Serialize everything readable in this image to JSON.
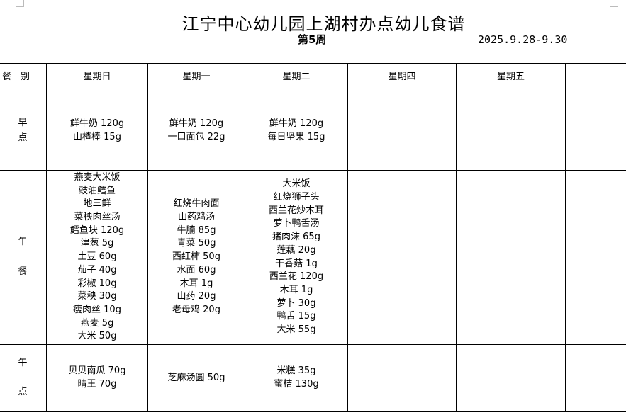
{
  "title": "江宁中心幼儿园上湖村办点幼儿食谱",
  "week": "第5周",
  "date": "2025.9.28-9.30",
  "headers": [
    "餐　别",
    "星期日",
    "星期一",
    "星期二",
    "星期四",
    "星期五",
    ""
  ],
  "meals": {
    "breakfast": {
      "label": "早\n点",
      "days": [
        [
          "鲜牛奶 120g",
          "山楂棒 15g"
        ],
        [
          "鲜牛奶 120g",
          "一口面包 22g"
        ],
        [
          "鲜牛奶 120g",
          "每日坚果 15g"
        ],
        [],
        [],
        []
      ]
    },
    "lunch": {
      "label": "午\n\n餐",
      "days": [
        [
          "燕麦大米饭",
          "豉油鳕鱼",
          "地三鲜",
          "菜秧肉丝汤",
          "鳕鱼块 120g",
          "津葱 5g",
          "土豆 60g",
          "茄子 40g",
          "彩椒 10g",
          "菜秧 30g",
          "瘦肉丝 10g",
          "燕麦 5g",
          "大米 50g"
        ],
        [
          "红烧牛肉面",
          "山药鸡汤",
          "牛腩 85g",
          "青菜 50g",
          "西红柿 50g",
          "水面 60g",
          "木耳 1g",
          "山药 20g",
          "老母鸡 20g"
        ],
        [
          "大米饭",
          "红烧狮子头",
          "西兰花炒木耳",
          "萝卜鸭舌汤",
          "猪肉沫 65g",
          "莲藕 20g",
          "干香菇 1g",
          "西兰花 120g",
          "木耳 1g",
          "萝卜 30g",
          "鸭舌 15g",
          "大米 55g"
        ],
        [],
        [],
        []
      ]
    },
    "snack": {
      "label": "午\n\n点",
      "days": [
        [
          "贝贝南瓜 70g",
          "晴王 70g"
        ],
        [
          "芝麻汤圆 50g"
        ],
        [
          "米糕 35g",
          "蜜桔 130g"
        ],
        [],
        [],
        []
      ]
    }
  }
}
